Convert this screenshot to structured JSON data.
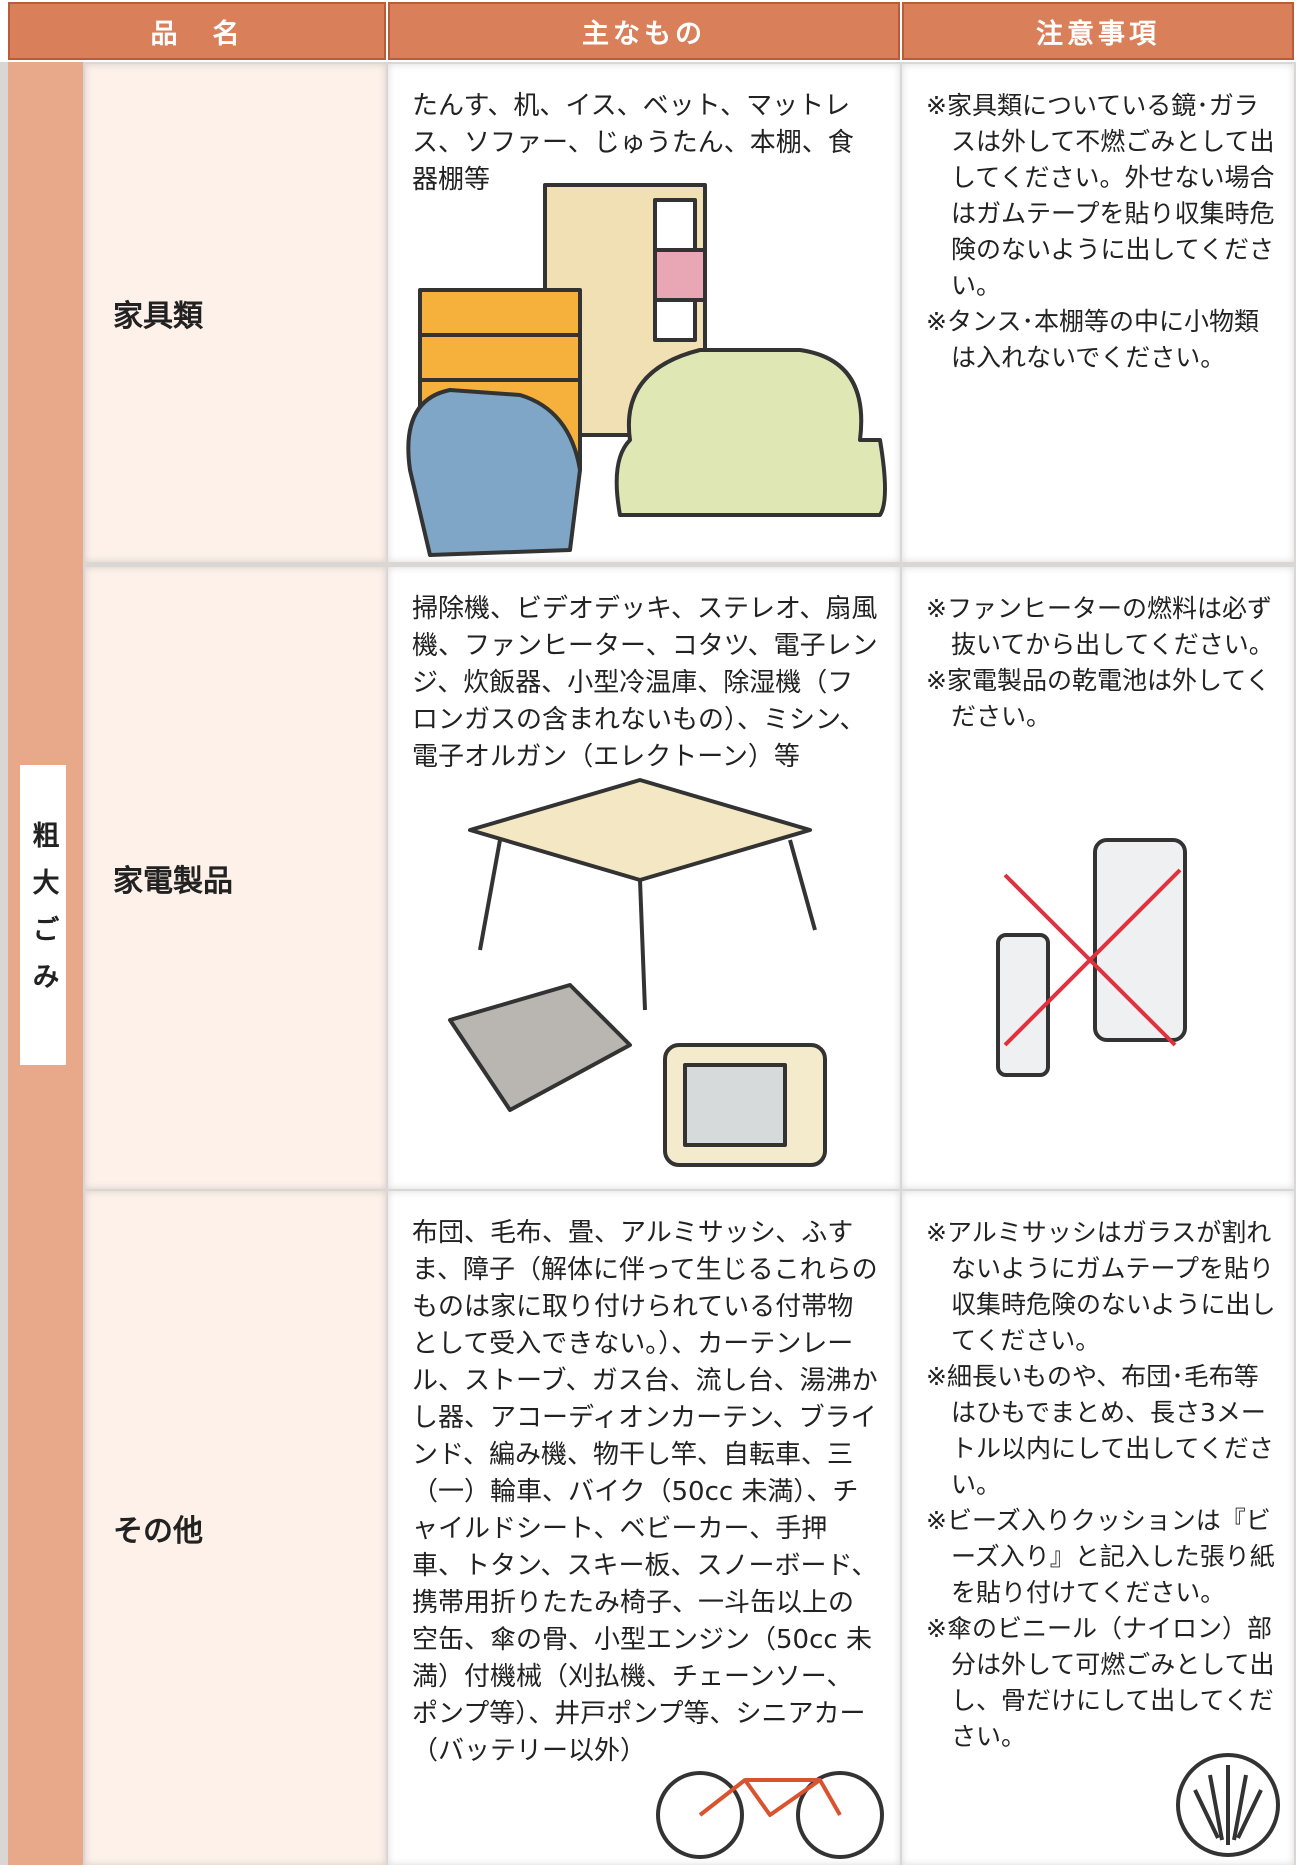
{
  "header": {
    "columns": [
      "品　名",
      "主なもの",
      "注意事項"
    ]
  },
  "category": "粗大ごみ",
  "rows": [
    {
      "name": "家具類",
      "items": "たんす、机、イス、ベット、マットレス、ソファー、じゅうたん、本棚、食器棚等",
      "notes": [
        "※家具類についている鏡･ガラスは外して不燃ごみとして出してください。外せない場合はガムテープを貼り収集時危険のないように出してください。",
        "※タンス･本棚等の中に小物類は入れないでください。"
      ]
    },
    {
      "name": "家電製品",
      "items": "掃除機、ビデオデッキ、ステレオ、扇風機、ファンヒーター、コタツ、電子レンジ、炊飯器、小型冷温庫、除湿機（フロンガスの含まれないもの）、ミシン、電子オルガン（エレクトーン）等",
      "notes": [
        "※ファンヒーターの燃料は必ず抜いてから出してください。",
        "※家電製品の乾電池は外してください。"
      ]
    },
    {
      "name": "その他",
      "items": "布団、毛布、畳、アルミサッシ、ふすま、障子（解体に伴って生じるこれらのものは家に取り付けられている付帯物として受入できない。）、カーテンレール、ストーブ、ガス台、流し台、湯沸かし器、アコーディオンカーテン、ブラインド、編み機、物干し竿、自転車、三（一）輪車、バイク（50cc 未満）、チャイルドシート、ベビーカー、手押車、トタン、スキー板、スノーボード、携帯用折りたたみ椅子、一斗缶以上の空缶、傘の骨、小型エンジン（50cc 未満）付機械（刈払機、チェーンソー、ポンプ等）、井戸ポンプ等、シニアカー（バッテリー以外）",
      "notes": [
        "※アルミサッシはガラスが割れないようにガムテープを貼り収集時危険のないように出してください。",
        "※細長いものや、布団･毛布等はひもでまとめ、長さ3メートル以内にして出してください。",
        "※ビーズ入りクッションは『ビーズ入り』と記入した張り紙を貼り付けてください。",
        "※傘のビニール（ナイロン）部分は外して可燃ごみとして出し、骨だけにして出してください。"
      ]
    }
  ]
}
